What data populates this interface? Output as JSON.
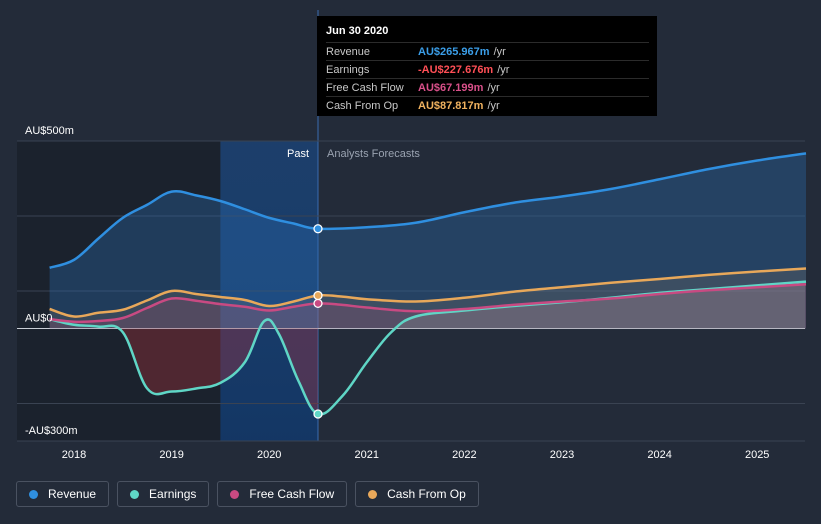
{
  "tooltip": {
    "date": "Jun 30 2020",
    "rows": [
      {
        "label": "Revenue",
        "value": "AU$265.967m",
        "unit": "/yr",
        "color": "#3b9ee8"
      },
      {
        "label": "Earnings",
        "value": "-AU$227.676m",
        "unit": "/yr",
        "color": "#ff4f56"
      },
      {
        "label": "Free Cash Flow",
        "value": "AU$67.199m",
        "unit": "/yr",
        "color": "#d9508a"
      },
      {
        "label": "Cash From Op",
        "value": "AU$87.817m",
        "unit": "/yr",
        "color": "#f0b25f"
      }
    ]
  },
  "regions": {
    "past": "Past",
    "forecast": "Analysts Forecasts"
  },
  "legend": [
    {
      "label": "Revenue",
      "color": "#2f8fe0"
    },
    {
      "label": "Earnings",
      "color": "#5fd6c6"
    },
    {
      "label": "Free Cash Flow",
      "color": "#c84a82"
    },
    {
      "label": "Cash From Op",
      "color": "#e8a85a"
    }
  ],
  "chart_data": {
    "type": "line",
    "title": "",
    "xlabel": "",
    "ylabel": "",
    "units": "AU$ millions",
    "ylim": [
      -300,
      500
    ],
    "xlim": [
      2017.45,
      2025.5
    ],
    "y_tick_labels": [
      {
        "value": 500,
        "label": "AU$500m"
      },
      {
        "value": 0,
        "label": "AU$0"
      },
      {
        "value": -300,
        "label": "-AU$300m"
      }
    ],
    "x_ticks": [
      2018,
      2019,
      2020,
      2021,
      2022,
      2023,
      2024,
      2025
    ],
    "x_tick_labels": [
      "2018",
      "2019",
      "2020",
      "2021",
      "2022",
      "2023",
      "2024",
      "2025"
    ],
    "past_end": 2020.5,
    "highlight_start": 2019.5,
    "series": [
      {
        "name": "Revenue",
        "color": "#2f8fe0",
        "points": [
          [
            2017.75,
            162
          ],
          [
            2018.0,
            183
          ],
          [
            2018.25,
            240
          ],
          [
            2018.5,
            295
          ],
          [
            2018.75,
            330
          ],
          [
            2019.0,
            365
          ],
          [
            2019.25,
            355
          ],
          [
            2019.5,
            340
          ],
          [
            2019.75,
            318
          ],
          [
            2020.0,
            295
          ],
          [
            2020.25,
            280
          ],
          [
            2020.5,
            266
          ],
          [
            2021.0,
            270
          ],
          [
            2021.5,
            282
          ],
          [
            2022.0,
            310
          ],
          [
            2022.5,
            335
          ],
          [
            2023.0,
            352
          ],
          [
            2023.5,
            372
          ],
          [
            2024.0,
            398
          ],
          [
            2024.5,
            425
          ],
          [
            2025.0,
            448
          ],
          [
            2025.5,
            467
          ]
        ]
      },
      {
        "name": "Earnings",
        "color": "#5fd6c6",
        "points": [
          [
            2017.75,
            25
          ],
          [
            2018.0,
            10
          ],
          [
            2018.25,
            5
          ],
          [
            2018.5,
            -10
          ],
          [
            2018.75,
            -160
          ],
          [
            2019.0,
            -168
          ],
          [
            2019.25,
            -160
          ],
          [
            2019.5,
            -145
          ],
          [
            2019.75,
            -90
          ],
          [
            2019.95,
            20
          ],
          [
            2020.1,
            -15
          ],
          [
            2020.3,
            -140
          ],
          [
            2020.5,
            -228
          ],
          [
            2020.75,
            -180
          ],
          [
            2021.0,
            -90
          ],
          [
            2021.25,
            -10
          ],
          [
            2021.5,
            32
          ],
          [
            2022.0,
            48
          ],
          [
            2022.5,
            60
          ],
          [
            2023.0,
            70
          ],
          [
            2023.5,
            82
          ],
          [
            2024.0,
            95
          ],
          [
            2024.5,
            105
          ],
          [
            2025.0,
            115
          ],
          [
            2025.5,
            125
          ]
        ]
      },
      {
        "name": "Free Cash Flow",
        "color": "#c84a82",
        "points": [
          [
            2017.75,
            25
          ],
          [
            2018.0,
            18
          ],
          [
            2018.25,
            20
          ],
          [
            2018.5,
            28
          ],
          [
            2018.75,
            55
          ],
          [
            2019.0,
            80
          ],
          [
            2019.25,
            74
          ],
          [
            2019.5,
            65
          ],
          [
            2019.75,
            58
          ],
          [
            2020.0,
            48
          ],
          [
            2020.25,
            58
          ],
          [
            2020.5,
            67
          ],
          [
            2020.75,
            63
          ],
          [
            2021.0,
            56
          ],
          [
            2021.5,
            46
          ],
          [
            2022.0,
            52
          ],
          [
            2022.5,
            63
          ],
          [
            2023.0,
            72
          ],
          [
            2023.5,
            80
          ],
          [
            2024.0,
            92
          ],
          [
            2024.5,
            102
          ],
          [
            2025.0,
            110
          ],
          [
            2025.5,
            118
          ]
        ]
      },
      {
        "name": "Cash From Op",
        "color": "#e8a85a",
        "points": [
          [
            2017.75,
            52
          ],
          [
            2018.0,
            32
          ],
          [
            2018.25,
            42
          ],
          [
            2018.5,
            50
          ],
          [
            2018.75,
            75
          ],
          [
            2019.0,
            100
          ],
          [
            2019.25,
            92
          ],
          [
            2019.5,
            84
          ],
          [
            2019.75,
            76
          ],
          [
            2020.0,
            60
          ],
          [
            2020.25,
            72
          ],
          [
            2020.5,
            88
          ],
          [
            2020.75,
            85
          ],
          [
            2021.0,
            78
          ],
          [
            2021.5,
            72
          ],
          [
            2022.0,
            82
          ],
          [
            2022.5,
            98
          ],
          [
            2023.0,
            110
          ],
          [
            2023.5,
            122
          ],
          [
            2024.0,
            132
          ],
          [
            2024.5,
            143
          ],
          [
            2025.0,
            152
          ],
          [
            2025.5,
            160
          ]
        ]
      }
    ]
  }
}
